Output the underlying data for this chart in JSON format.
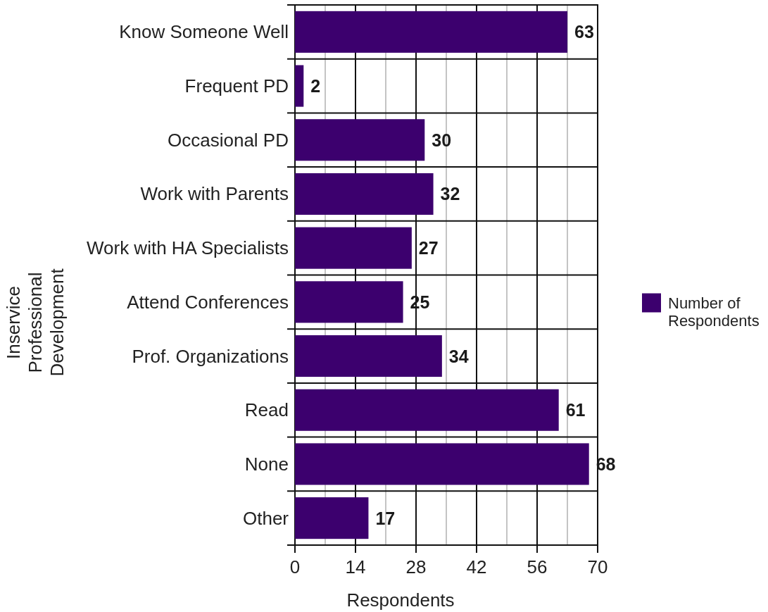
{
  "chart_data": {
    "type": "bar",
    "orientation": "horizontal",
    "categories": [
      "Know Someone Well",
      "Frequent PD",
      "Occasional PD",
      "Work with Parents",
      "Work with HA Specialists",
      "Attend Conferences",
      "Prof. Organizations",
      "Read",
      "None",
      "Other"
    ],
    "series": [
      {
        "name": "Number of Respondents",
        "color": "#3c006e",
        "values": [
          63,
          2,
          30,
          32,
          27,
          25,
          34,
          61,
          68,
          17
        ]
      }
    ],
    "xlabel": "Respondents",
    "ylabel": "Inservice Professional Development",
    "xlim": [
      0,
      70
    ],
    "xticks": [
      0,
      {
        "value": 7,
        "label": null
      },
      14,
      {
        "value": 21,
        "label": null
      },
      28,
      {
        "value": 35,
        "label": null
      },
      42,
      {
        "value": 49,
        "label": null
      },
      56,
      {
        "value": 63,
        "label": null
      },
      70
    ],
    "grid": true,
    "legend": "right",
    "data_labels": true
  }
}
